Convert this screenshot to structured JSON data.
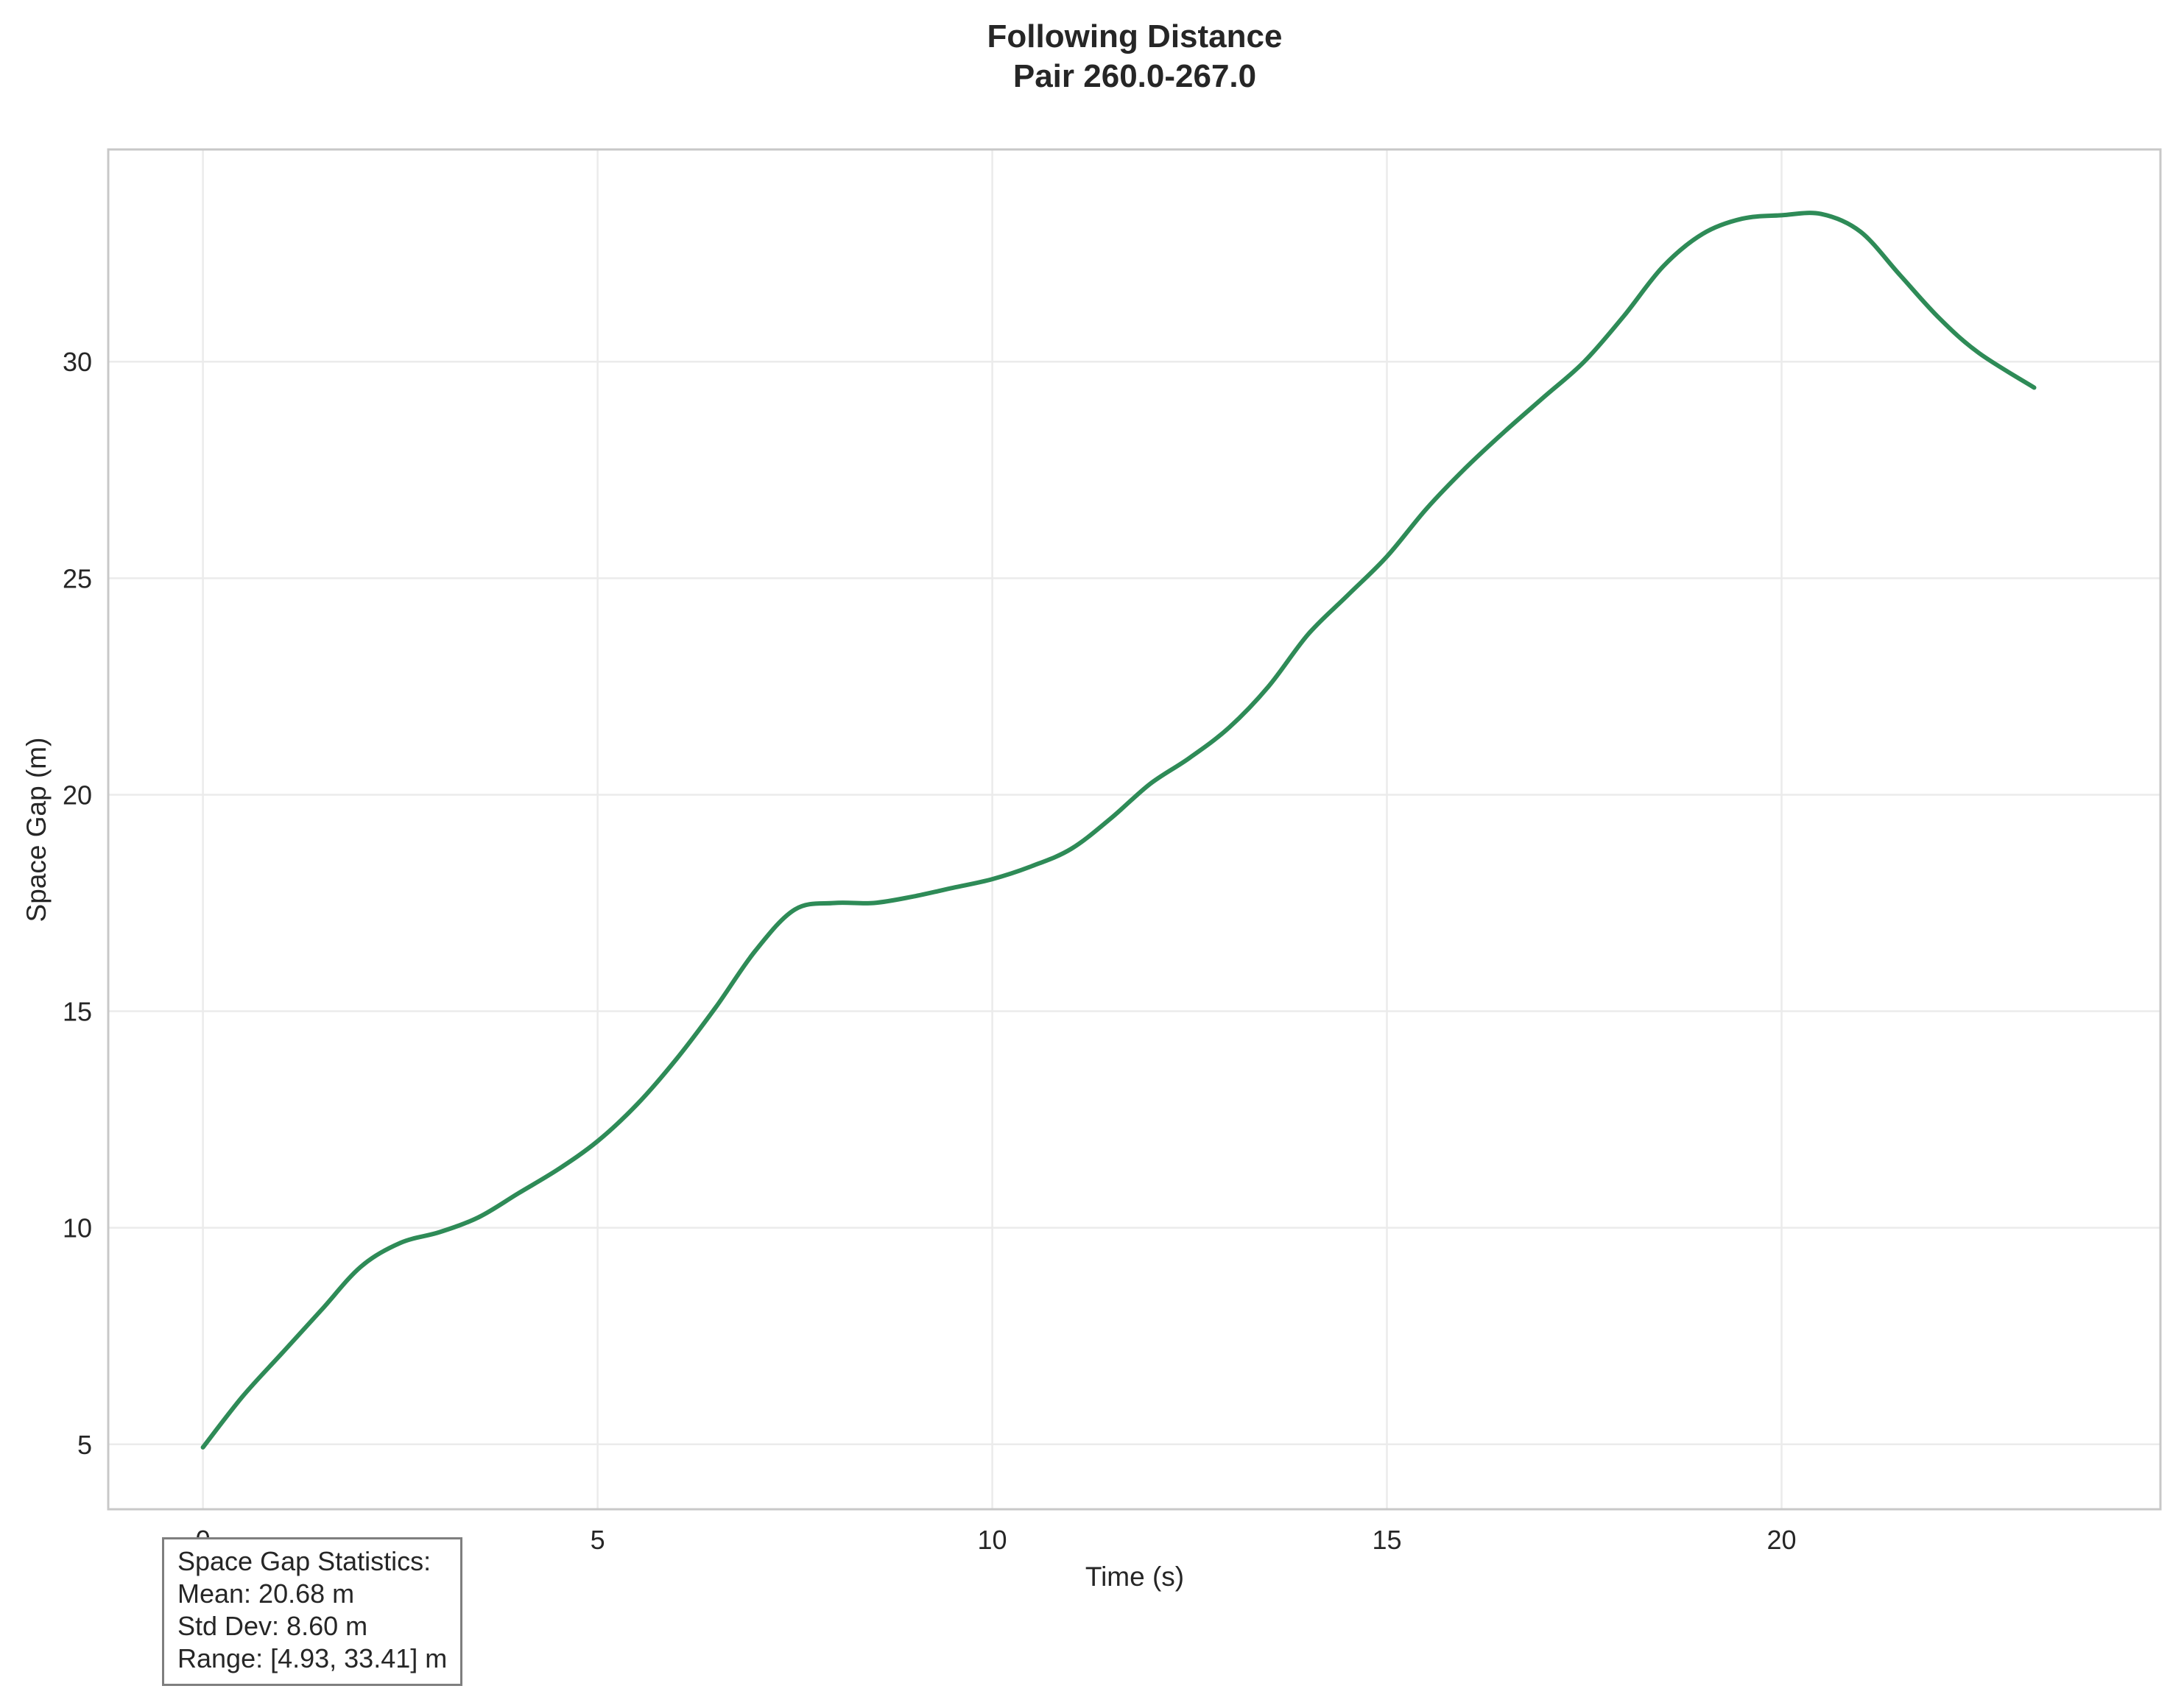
{
  "chart_data": {
    "type": "line",
    "title": "Following Distance",
    "subtitle": "Pair 260.0-267.0",
    "xlabel": "Time (s)",
    "ylabel": "Space Gap (m)",
    "xlim": [
      -1.2,
      24.8
    ],
    "ylim": [
      3.5,
      34.9
    ],
    "xticks": [
      0,
      5,
      10,
      15,
      20
    ],
    "yticks": [
      5,
      10,
      15,
      20,
      25,
      30
    ],
    "grid": true,
    "series": [
      {
        "color": "#2e8b57",
        "x": [
          0,
          0.5,
          1.0,
          1.5,
          2.0,
          2.5,
          3.0,
          3.5,
          4.0,
          4.5,
          5.0,
          5.5,
          6.0,
          6.5,
          7.0,
          7.5,
          8.0,
          8.5,
          9.0,
          9.5,
          10.0,
          10.5,
          11.0,
          11.5,
          12.0,
          12.5,
          13.0,
          13.5,
          14.0,
          14.5,
          15.0,
          15.5,
          16.0,
          16.5,
          17.0,
          17.5,
          18.0,
          18.5,
          19.0,
          19.5,
          20.0,
          20.5,
          21.0,
          21.5,
          22.0,
          22.5,
          23.2
        ],
        "y": [
          4.93,
          6.1,
          7.1,
          8.1,
          9.1,
          9.65,
          9.9,
          10.25,
          10.8,
          11.35,
          12.0,
          12.85,
          13.9,
          15.1,
          16.4,
          17.35,
          17.5,
          17.5,
          17.65,
          17.85,
          18.05,
          18.35,
          18.75,
          19.45,
          20.25,
          20.85,
          21.55,
          22.5,
          23.7,
          24.6,
          25.5,
          26.6,
          27.55,
          28.4,
          29.2,
          30.0,
          31.05,
          32.2,
          32.95,
          33.3,
          33.38,
          33.41,
          33.0,
          32.0,
          31.0,
          30.2,
          29.4
        ]
      }
    ]
  },
  "stats": {
    "heading": "Space Gap Statistics:",
    "mean": "Mean: 20.68 m",
    "std": "Std Dev: 8.60 m",
    "range": "Range: [4.93, 33.41] m"
  }
}
